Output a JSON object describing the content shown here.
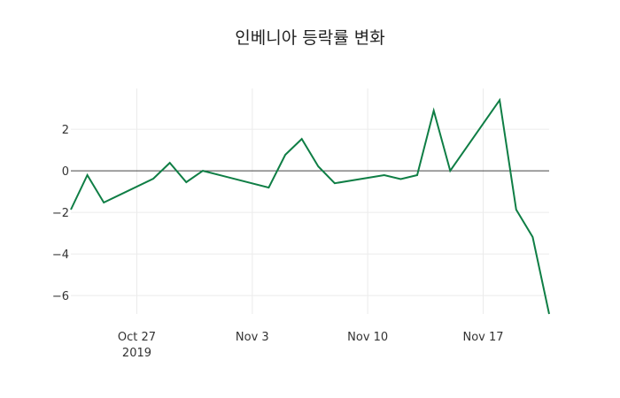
{
  "chart_data": {
    "type": "line",
    "title": "인베니아 등락률 변화",
    "xlabel": "",
    "ylabel": "",
    "x": [
      "2019-10-23",
      "2019-10-24",
      "2019-10-25",
      "2019-10-28",
      "2019-10-29",
      "2019-10-30",
      "2019-10-31",
      "2019-11-04",
      "2019-11-05",
      "2019-11-06",
      "2019-11-07",
      "2019-11-08",
      "2019-11-11",
      "2019-11-12",
      "2019-11-13",
      "2019-11-14",
      "2019-11-15",
      "2019-11-18",
      "2019-11-19",
      "2019-11-20",
      "2019-11-21"
    ],
    "series": [
      {
        "name": "등락률",
        "color": "#0f7e45",
        "values": [
          -1.87,
          -0.21,
          -1.53,
          -0.38,
          0.38,
          -0.55,
          0.0,
          -0.81,
          0.77,
          1.53,
          0.21,
          -0.6,
          -0.21,
          -0.4,
          -0.21,
          2.89,
          0.0,
          3.4,
          -1.87,
          -3.19,
          -6.89
        ]
      }
    ],
    "xlim": [
      "2019-10-23",
      "2019-11-21"
    ],
    "ylim": [
      -6.89,
      3.96
    ],
    "x_ticks": [
      {
        "date": "2019-10-27",
        "label": "Oct 27",
        "sublabel": "2019"
      },
      {
        "date": "2019-11-03",
        "label": "Nov 3",
        "sublabel": ""
      },
      {
        "date": "2019-11-10",
        "label": "Nov 10",
        "sublabel": ""
      },
      {
        "date": "2019-11-17",
        "label": "Nov 17",
        "sublabel": ""
      }
    ],
    "y_ticks": [
      2,
      0,
      -2,
      -4,
      -6
    ],
    "y_tick_labels": [
      "2",
      "0",
      "−2",
      "−4",
      "−6"
    ],
    "grid": true,
    "zero_line": true,
    "legend": false
  }
}
